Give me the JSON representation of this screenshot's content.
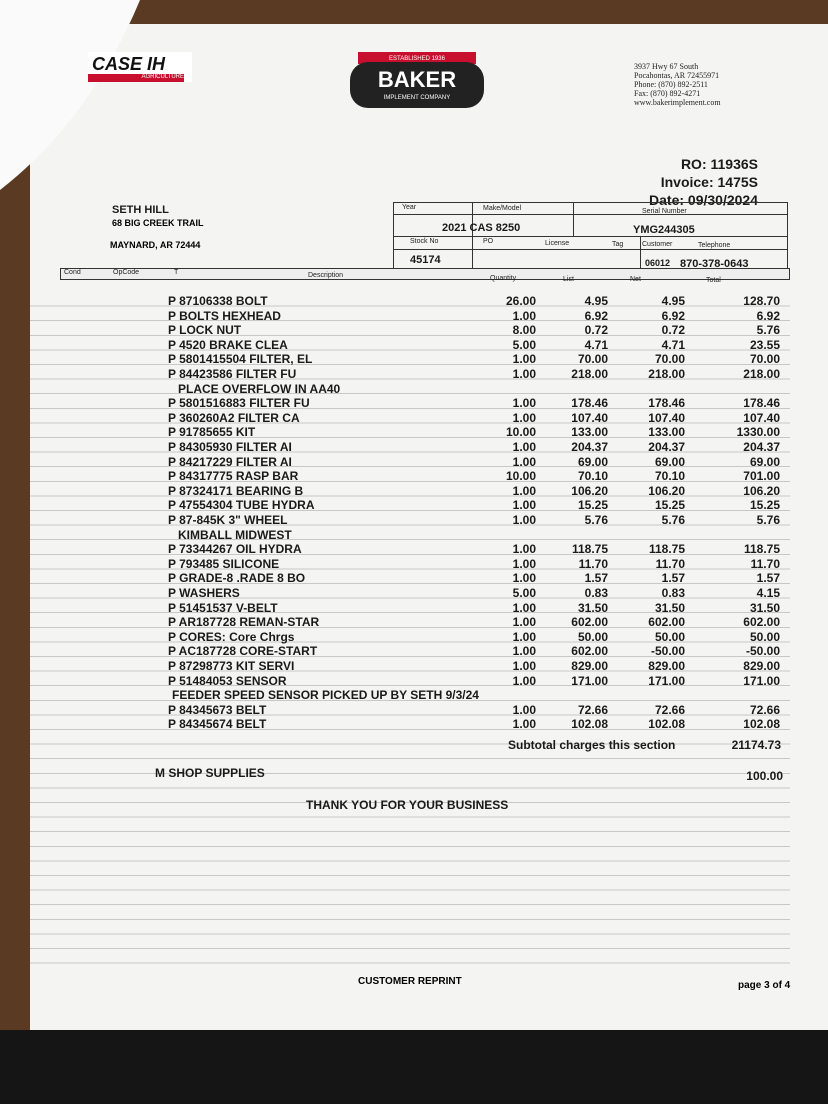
{
  "header": {
    "case_logo": "CASE IH",
    "case_sub": "AGRICULTURE",
    "baker_est": "ESTABLISHED 1936",
    "baker_name": "BAKER",
    "baker_sub": "IMPLEMENT COMPANY",
    "address": [
      "3937 Hwy 67 South",
      "Pocahontas, AR 72455971",
      "Phone: (870) 892-2511",
      "Fax: (870) 892-4271",
      "www.bakerimplement.com"
    ]
  },
  "invoice": {
    "ro": "RO: 11936S",
    "invoice": "Invoice: 1475S",
    "date": "Date: 09/30/2024"
  },
  "customer": {
    "name": "SETH HILL",
    "street": "68 BIG CREEK TRAIL",
    "city": "MAYNARD, AR  72444"
  },
  "unit": {
    "year_label": "Year",
    "make_label": "Make/Model",
    "serial_label": "Serial Number",
    "make": "2021 CAS 8250",
    "serial": "YMG244305",
    "stock_label": "Stock No",
    "po_label": "PO",
    "license_label": "License",
    "tag_label": "Tag",
    "customer_label": "Customer",
    "phone_label": "Telephone",
    "stock": "45174",
    "customer": "06012",
    "phone": "870-378-0643"
  },
  "columns": {
    "cond": "Cond",
    "opcode": "OpCode",
    "t": "T",
    "description": "Description",
    "quantity": "Quantity",
    "list": "List",
    "net": "Net",
    "total": "Total"
  },
  "lines": [
    {
      "desc": "P 87106338 BOLT",
      "qty": "26.00",
      "list": "4.95",
      "net": "4.95",
      "total": "128.70"
    },
    {
      "desc": "P BOLTS HEXHEAD",
      "qty": "1.00",
      "list": "6.92",
      "net": "6.92",
      "total": "6.92"
    },
    {
      "desc": "P LOCK NUT",
      "qty": "8.00",
      "list": "0.72",
      "net": "0.72",
      "total": "5.76"
    },
    {
      "desc": "P 4520 BRAKE CLEA",
      "qty": "5.00",
      "list": "4.71",
      "net": "4.71",
      "total": "23.55"
    },
    {
      "desc": "P 5801415504 FILTER, EL",
      "qty": "1.00",
      "list": "70.00",
      "net": "70.00",
      "total": "70.00"
    },
    {
      "desc": "P 84423586 FILTER FU",
      "qty": "1.00",
      "list": "218.00",
      "net": "218.00",
      "total": "218.00"
    },
    {
      "note": "PLACE OVERFLOW IN AA40"
    },
    {
      "desc": "P 5801516883 FILTER FU",
      "qty": "1.00",
      "list": "178.46",
      "net": "178.46",
      "total": "178.46"
    },
    {
      "desc": "P 360260A2 FILTER CA",
      "qty": "1.00",
      "list": "107.40",
      "net": "107.40",
      "total": "107.40"
    },
    {
      "desc": "P 91785655 KIT",
      "qty": "10.00",
      "list": "133.00",
      "net": "133.00",
      "total": "1330.00"
    },
    {
      "desc": "P 84305930 FILTER AI",
      "qty": "1.00",
      "list": "204.37",
      "net": "204.37",
      "total": "204.37"
    },
    {
      "desc": "P 84217229 FILTER AI",
      "qty": "1.00",
      "list": "69.00",
      "net": "69.00",
      "total": "69.00"
    },
    {
      "desc": "P 84317775 RASP BAR",
      "qty": "10.00",
      "list": "70.10",
      "net": "70.10",
      "total": "701.00"
    },
    {
      "desc": "P 87324171 BEARING B",
      "qty": "1.00",
      "list": "106.20",
      "net": "106.20",
      "total": "106.20"
    },
    {
      "desc": "P 47554304 TUBE HYDRA",
      "qty": "1.00",
      "list": "15.25",
      "net": "15.25",
      "total": "15.25"
    },
    {
      "desc": "P 87-845K 3\" WHEEL",
      "qty": "1.00",
      "list": "5.76",
      "net": "5.76",
      "total": "5.76"
    },
    {
      "note": "KIMBALL MIDWEST"
    },
    {
      "desc": "P 73344267 OIL HYDRA",
      "qty": "1.00",
      "list": "118.75",
      "net": "118.75",
      "total": "118.75"
    },
    {
      "desc": "P 793485 SILICONE",
      "qty": "1.00",
      "list": "11.70",
      "net": "11.70",
      "total": "11.70"
    },
    {
      "desc": "P GRADE-8 .RADE 8 BO",
      "qty": "1.00",
      "list": "1.57",
      "net": "1.57",
      "total": "1.57"
    },
    {
      "desc": "P WASHERS",
      "qty": "5.00",
      "list": "0.83",
      "net": "0.83",
      "total": "4.15"
    },
    {
      "desc": "P 51451537 V-BELT",
      "qty": "1.00",
      "list": "31.50",
      "net": "31.50",
      "total": "31.50"
    },
    {
      "desc": "P AR187728 REMAN-STAR",
      "qty": "1.00",
      "list": "602.00",
      "net": "602.00",
      "total": "602.00"
    },
    {
      "desc": "P CORES: Core Chrgs",
      "qty": "1.00",
      "list": "50.00",
      "net": "50.00",
      "total": "50.00"
    },
    {
      "desc": "P AC187728 CORE-START",
      "qty": "1.00",
      "list": "602.00",
      "net": "-50.00",
      "total": "-50.00"
    },
    {
      "desc": "P 87298773 KIT SERVI",
      "qty": "1.00",
      "list": "829.00",
      "net": "829.00",
      "total": "829.00"
    },
    {
      "desc": "P 51484053 SENSOR",
      "qty": "1.00",
      "list": "171.00",
      "net": "171.00",
      "total": "171.00"
    },
    {
      "note": "FEEDER SPEED SENSOR PICKED UP BY SETH 9/3/24"
    },
    {
      "desc": "P 84345673 BELT",
      "qty": "1.00",
      "list": "72.66",
      "net": "72.66",
      "total": "72.66"
    },
    {
      "desc": "P 84345674 BELT",
      "qty": "1.00",
      "list": "102.08",
      "net": "102.08",
      "total": "102.08"
    }
  ],
  "subtotal": {
    "label": "Subtotal charges this section",
    "total": "21174.73"
  },
  "shop": {
    "label": "M  SHOP SUPPLIES",
    "total": "100.00"
  },
  "thanks": "THANK YOU FOR YOUR BUSINESS",
  "footer": {
    "reprint": "CUSTOMER REPRINT",
    "page": "page 3 of 4"
  }
}
